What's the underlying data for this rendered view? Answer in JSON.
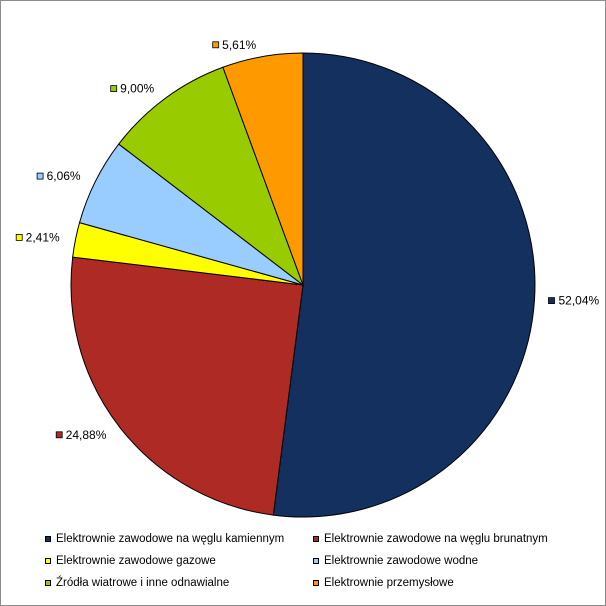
{
  "chart_data": {
    "type": "pie",
    "title": "",
    "start_angle_deg": 0,
    "direction": "clockwise",
    "legend_position": "bottom",
    "slices": [
      {
        "name": "Elektrownie zawodowe na węglu kamiennym",
        "value": 52.04,
        "label": "52,04%",
        "color": "#13305e"
      },
      {
        "name": "Elektrownie zawodowe na węglu brunatnym",
        "value": 24.88,
        "label": "24,88%",
        "color": "#ae2a25"
      },
      {
        "name": "Elektrownie zawodowe gazowe",
        "value": 2.41,
        "label": "2,41%",
        "color": "#ffff00"
      },
      {
        "name": "Elektrownie zawodowe wodne",
        "value": 6.06,
        "label": "6,06%",
        "color": "#99ccff"
      },
      {
        "name": "Źródła wiatrowe i inne odnawialne",
        "value": 9.0,
        "label": "9,00%",
        "color": "#99cc00"
      },
      {
        "name": "Elektrownie przemysłowe",
        "value": 5.61,
        "label": "5,61%",
        "color": "#ff9900"
      }
    ]
  }
}
